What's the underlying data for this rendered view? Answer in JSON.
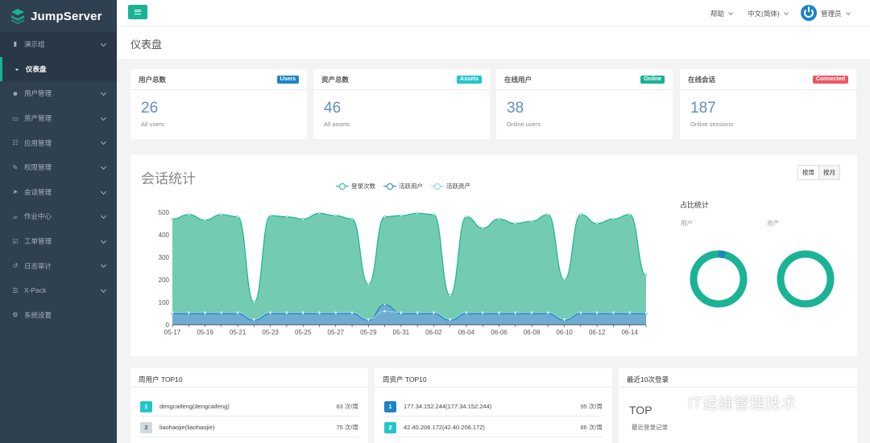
{
  "brand": {
    "name": "JumpServer"
  },
  "sidebar": {
    "items": [
      {
        "label": "演示组",
        "icon": "bookmark-icon",
        "expand": true,
        "group": true
      },
      {
        "label": "仪表盘",
        "icon": "dashboard-icon",
        "expand": false,
        "active": true
      },
      {
        "label": "用户管理",
        "icon": "users-icon",
        "expand": true
      },
      {
        "label": "资产管理",
        "icon": "inbox-icon",
        "expand": true
      },
      {
        "label": "应用管理",
        "icon": "grid-icon",
        "expand": true
      },
      {
        "label": "权限管理",
        "icon": "edit-icon",
        "expand": true
      },
      {
        "label": "会话管理",
        "icon": "send-icon",
        "expand": true
      },
      {
        "label": "作业中心",
        "icon": "coffee-icon",
        "expand": true
      },
      {
        "label": "工单管理",
        "icon": "check-square-icon",
        "expand": true
      },
      {
        "label": "日志审计",
        "icon": "history-icon",
        "expand": true
      },
      {
        "label": "X-Pack",
        "icon": "sitemap-icon",
        "expand": true
      },
      {
        "label": "系统设置",
        "icon": "cogs-icon",
        "expand": false
      }
    ]
  },
  "topbar": {
    "help": "帮助",
    "language": "中文(简体)",
    "user": "管理员"
  },
  "page": {
    "title": "仪表盘"
  },
  "stats": [
    {
      "title": "用户总数",
      "badge": "Users",
      "badge_color": "#1c84c6",
      "value": "26",
      "sub": "All users"
    },
    {
      "title": "资产总数",
      "badge": "Assets",
      "badge_color": "#23c6c8",
      "value": "46",
      "sub": "All assets"
    },
    {
      "title": "在线用户",
      "badge": "Online",
      "badge_color": "#1ab394",
      "value": "38",
      "sub": "Online users"
    },
    {
      "title": "在线会话",
      "badge": "Connected",
      "badge_color": "#ed5565",
      "value": "187",
      "sub": "Online sessions"
    }
  ],
  "session": {
    "title": "会话统计",
    "btn_week": "按周",
    "btn_month": "按月",
    "ratio_title": "占比统计",
    "ratio_users": "用户",
    "ratio_assets": "资产"
  },
  "chart_data": {
    "type": "area",
    "x": [
      "05-17",
      "05-18",
      "05-19",
      "05-20",
      "05-21",
      "05-22",
      "05-23",
      "05-24",
      "05-25",
      "05-26",
      "05-27",
      "05-28",
      "05-29",
      "05-30",
      "05-31",
      "06-01",
      "06-02",
      "06-03",
      "06-04",
      "06-05",
      "06-06",
      "06-07",
      "06-08",
      "06-09",
      "06-10",
      "06-11",
      "06-12",
      "06-13",
      "06-14",
      "06-15"
    ],
    "xticks": [
      "05-17",
      "05-19",
      "05-21",
      "05-23",
      "05-25",
      "05-27",
      "05-29",
      "05-31",
      "06-02",
      "06-04",
      "06-06",
      "06-08",
      "06-10",
      "06-12",
      "06-14"
    ],
    "ylim": [
      0,
      500
    ],
    "yticks": [
      0,
      100,
      200,
      300,
      400,
      500
    ],
    "series": [
      {
        "name": "登录次数",
        "color": "#1ab394",
        "fill": "#6cc9ad",
        "values": [
          470,
          490,
          465,
          490,
          480,
          100,
          485,
          480,
          470,
          495,
          485,
          470,
          180,
          480,
          485,
          495,
          490,
          130,
          480,
          430,
          470,
          450,
          460,
          490,
          200,
          490,
          450,
          470,
          490,
          220
        ]
      },
      {
        "name": "活跃用户",
        "color": "#1c84c6",
        "fill": "#6ea8d4",
        "values": [
          50,
          50,
          50,
          50,
          50,
          20,
          50,
          50,
          50,
          50,
          50,
          50,
          20,
          90,
          50,
          50,
          50,
          20,
          50,
          50,
          50,
          50,
          50,
          50,
          20,
          50,
          50,
          50,
          50,
          50
        ]
      },
      {
        "name": "活跃资产",
        "color": "#8fd1e6",
        "fill": "none",
        "values": [
          55,
          55,
          55,
          55,
          55,
          25,
          55,
          55,
          55,
          55,
          55,
          55,
          25,
          60,
          55,
          55,
          55,
          25,
          55,
          55,
          55,
          55,
          55,
          55,
          25,
          55,
          55,
          55,
          55,
          55
        ]
      }
    ]
  },
  "ratio_data": {
    "users": {
      "active_fraction": 0.04
    },
    "assets": {
      "active_fraction": 0.0
    }
  },
  "top_users": {
    "title": "周用户 TOP10",
    "rows": [
      {
        "rank": "1",
        "name": "dengcaifeng(dengcaifeng)",
        "count": "83 次/周",
        "color": "#23c6c8"
      },
      {
        "rank": "2",
        "name": "liaohaojie(liaohaojie)",
        "count": "75 次/周",
        "color": "#d1dade"
      }
    ]
  },
  "top_assets": {
    "title": "周资产 TOP10",
    "rows": [
      {
        "rank": "1",
        "name": "177.34.152.244(177.34.152.244)",
        "count": "95 次/周",
        "color": "#1c84c6"
      },
      {
        "rank": "2",
        "name": "42.40.206.172(42.40.206.172)",
        "count": "86 次/周",
        "color": "#23c6c8"
      }
    ]
  },
  "recent_login": {
    "title": "最近10次登录",
    "top": "TOP",
    "subtitle": "最近登录记录"
  },
  "watermark": {
    "text": "IT运维管理技术"
  }
}
